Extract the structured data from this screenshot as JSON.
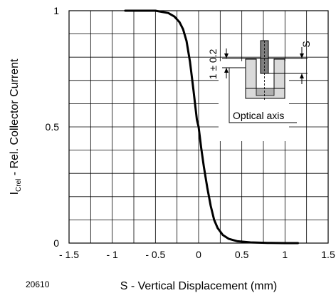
{
  "chart_data": {
    "type": "line",
    "xlabel": "S - Vertical Displacement (mm)",
    "ylabel_main": "I",
    "ylabel_sub": "Crel",
    "ylabel_rest": " - Rel. Collector Current",
    "xlim": [
      -1.5,
      1.5
    ],
    "ylim": [
      0,
      1
    ],
    "x_ticks": [
      -1.5,
      -1,
      -0.5,
      0,
      0.5,
      1,
      1.5
    ],
    "x_tick_labels": [
      "- 1.5",
      "- 1",
      "- 0.5",
      "0",
      "0.5",
      "1",
      "1.5"
    ],
    "y_ticks": [
      0,
      0.5,
      1
    ],
    "y_tick_labels": [
      "0",
      "0.5",
      "1"
    ],
    "grid": true,
    "series": [
      {
        "x": [
          -0.85,
          -0.5,
          -0.35,
          -0.28,
          -0.22,
          -0.18,
          -0.14,
          -0.1,
          -0.06,
          -0.02,
          0.0,
          0.03,
          0.06,
          0.1,
          0.14,
          0.18,
          0.22,
          0.28,
          0.35,
          0.45,
          0.6,
          0.8,
          1.0,
          1.15
        ],
        "y": [
          1.0,
          1.0,
          0.99,
          0.975,
          0.95,
          0.92,
          0.87,
          0.78,
          0.66,
          0.53,
          0.5,
          0.41,
          0.33,
          0.24,
          0.16,
          0.1,
          0.065,
          0.035,
          0.018,
          0.008,
          0.003,
          0.001,
          0.0,
          0.0
        ]
      }
    ]
  },
  "figure_id": "20610",
  "inset": {
    "dimension_label": "1 ± 0.2",
    "s_label": "S",
    "optical_axis_label": "Optical axis"
  }
}
